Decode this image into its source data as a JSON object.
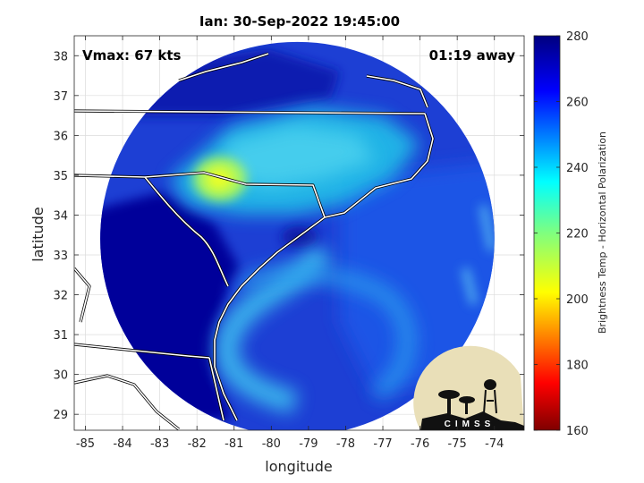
{
  "title": "Ian: 30-Sep-2022 19:45:00",
  "annotations": {
    "vmax": "Vmax: 67 kts",
    "time_away": "01:19 away"
  },
  "chart_data": {
    "type": "heatmap",
    "title": "Ian: 30-Sep-2022 19:45:00",
    "xlabel": "longitude",
    "ylabel": "latitude",
    "xlim": [
      -85.3,
      -73.2
    ],
    "ylim": [
      28.6,
      38.5
    ],
    "xticks": [
      -85,
      -84,
      -83,
      -82,
      -81,
      -80,
      -79,
      -78,
      -77,
      -76,
      -75,
      -74
    ],
    "yticks": [
      29,
      30,
      31,
      32,
      33,
      34,
      35,
      36,
      37,
      38
    ],
    "grid": true,
    "swath": {
      "center_lon": -79.3,
      "center_lat": 33.4,
      "radius_deg": 5.3
    },
    "storm_center": {
      "lon": -79.3,
      "lat": 33.4
    },
    "colorbar": {
      "label": "Brightness Temp - Horizontal Polarization",
      "min": 160,
      "max": 280,
      "ticks": [
        160,
        180,
        200,
        220,
        240,
        260,
        280
      ],
      "colormap": "jet"
    },
    "features": [
      {
        "name": "cold-cloud-core",
        "lon": -81.2,
        "lat": 35.0,
        "value": 205
      },
      {
        "name": "cloud-band",
        "lon": -79.2,
        "lat": 35.8,
        "value": 240
      },
      {
        "name": "spiral-band",
        "lon": -79.3,
        "lat": 31.4,
        "value": 242
      },
      {
        "name": "ocean-background",
        "lon": -75.5,
        "lat": 33.0,
        "value": 268
      }
    ]
  },
  "logo": {
    "text": "CIMSS",
    "name": "CIMSS logo"
  },
  "colors": {
    "swath_base": "#1d3fd4",
    "land_dark": "#00008f",
    "border": "#ffffff"
  }
}
